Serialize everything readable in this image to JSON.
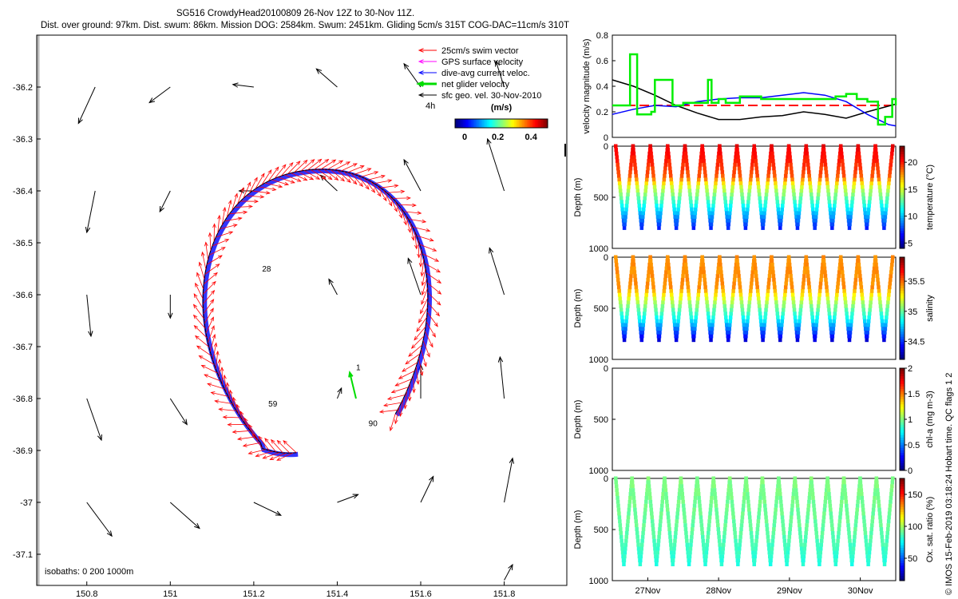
{
  "header": {
    "line1": "SG516 CrowdyHead20100809 26-Nov 12Z to 30-Nov 11Z.",
    "line2": "Dist. over ground: 97km. Dist. swum: 86km. Mission DOG: 2584km. Swum: 2451km. Gliding 5cm/s 315T COG-DAC=11cm/s 310T"
  },
  "credit": "© IMOS 15-Feb-2019 03:18:24 Hobart time. QC flags 1  2",
  "chart_data": [
    {
      "type": "scatter",
      "name": "map",
      "xlim": [
        150.68,
        151.95
      ],
      "ylim": [
        -37.16,
        -36.1
      ],
      "xticks": [
        "150.8",
        "151",
        "151.2",
        "151.4",
        "151.6",
        "151.8"
      ],
      "xtick_values": [
        150.8,
        151.0,
        151.2,
        151.4,
        151.6,
        151.8
      ],
      "yticks": [
        "-36.2",
        "-36.3",
        "-36.4",
        "-36.5",
        "-36.6",
        "-36.7",
        "-36.8",
        "-36.9",
        "-37",
        "-37.1"
      ],
      "ytick_values": [
        -36.2,
        -36.3,
        -36.4,
        -36.5,
        -36.6,
        -36.7,
        -36.8,
        -36.9,
        -37.0,
        -37.1
      ],
      "legend": {
        "placement": "top-right",
        "entries": [
          {
            "label": "25cm/s swim vector",
            "color": "#ff0000"
          },
          {
            "label": "GPS surface velocity",
            "color": "#ff00ff"
          },
          {
            "label": "dive-avg current veloc.",
            "color": "#0000ff"
          },
          {
            "label": "net glider velocity",
            "color": "#00dd00"
          },
          {
            "label": "sfc geo. vel. 30-Nov-2010",
            "color": "#000000"
          }
        ]
      },
      "colorbar": {
        "label": "(m/s)",
        "scale_tag": "4h",
        "ticks": [
          "0",
          "0.2",
          "0.4"
        ],
        "range": [
          0,
          0.5
        ]
      },
      "isobath_note": "isobaths: 0   200  1000m",
      "track_labels": [
        {
          "text": "1",
          "lon": 151.445,
          "lat": -36.745
        },
        {
          "text": "28",
          "lon": 151.22,
          "lat": -36.555
        },
        {
          "text": "59",
          "lon": 151.235,
          "lat": -36.815
        },
        {
          "text": "90",
          "lon": 151.475,
          "lat": -36.853
        }
      ],
      "track_center": {
        "lon": 151.35,
        "lat": -36.64
      },
      "geo_vectors": [
        {
          "lon": 150.82,
          "lat": -36.2,
          "dlon": -0.04,
          "dlat": -0.07
        },
        {
          "lon": 151.0,
          "lat": -36.2,
          "dlon": -0.05,
          "dlat": -0.03
        },
        {
          "lon": 151.2,
          "lat": -36.2,
          "dlon": -0.05,
          "dlat": 0.005
        },
        {
          "lon": 151.4,
          "lat": -36.2,
          "dlon": -0.05,
          "dlat": 0.035
        },
        {
          "lon": 151.6,
          "lat": -36.2,
          "dlon": -0.04,
          "dlat": 0.045
        },
        {
          "lon": 151.8,
          "lat": -36.2,
          "dlon": -0.02,
          "dlat": 0.05
        },
        {
          "lon": 150.82,
          "lat": -36.4,
          "dlon": -0.02,
          "dlat": -0.08
        },
        {
          "lon": 151.0,
          "lat": -36.4,
          "dlon": -0.025,
          "dlat": -0.04
        },
        {
          "lon": 151.2,
          "lat": -36.4,
          "dlon": -0.035,
          "dlat": 0.0
        },
        {
          "lon": 151.4,
          "lat": -36.4,
          "dlon": -0.04,
          "dlat": 0.03
        },
        {
          "lon": 151.6,
          "lat": -36.4,
          "dlon": -0.04,
          "dlat": 0.06
        },
        {
          "lon": 151.8,
          "lat": -36.4,
          "dlon": -0.04,
          "dlat": 0.1
        },
        {
          "lon": 150.8,
          "lat": -36.6,
          "dlon": 0.01,
          "dlat": -0.08
        },
        {
          "lon": 151.0,
          "lat": -36.6,
          "dlon": 0.0,
          "dlat": -0.045
        },
        {
          "lon": 151.4,
          "lat": -36.6,
          "dlon": -0.02,
          "dlat": 0.03
        },
        {
          "lon": 151.6,
          "lat": -36.6,
          "dlon": -0.03,
          "dlat": 0.07
        },
        {
          "lon": 151.8,
          "lat": -36.6,
          "dlon": -0.035,
          "dlat": 0.09
        },
        {
          "lon": 150.8,
          "lat": -36.8,
          "dlon": 0.035,
          "dlat": -0.08
        },
        {
          "lon": 151.0,
          "lat": -36.8,
          "dlon": 0.04,
          "dlat": -0.05
        },
        {
          "lon": 151.4,
          "lat": -36.8,
          "dlon": 0.01,
          "dlat": 0.02
        },
        {
          "lon": 151.6,
          "lat": -36.8,
          "dlon": 0.0,
          "dlat": 0.065
        },
        {
          "lon": 151.8,
          "lat": -36.8,
          "dlon": -0.01,
          "dlat": 0.08
        },
        {
          "lon": 150.8,
          "lat": -37.0,
          "dlon": 0.06,
          "dlat": -0.065
        },
        {
          "lon": 151.0,
          "lat": -37.0,
          "dlon": 0.07,
          "dlat": -0.05
        },
        {
          "lon": 151.2,
          "lat": -37.0,
          "dlon": 0.065,
          "dlat": -0.025
        },
        {
          "lon": 151.4,
          "lat": -37.0,
          "dlon": 0.05,
          "dlat": 0.015
        },
        {
          "lon": 151.6,
          "lat": -37.0,
          "dlon": 0.03,
          "dlat": 0.05
        },
        {
          "lon": 151.8,
          "lat": -37.0,
          "dlon": 0.02,
          "dlat": 0.085
        },
        {
          "lon": 151.8,
          "lat": -37.15,
          "dlon": 0.02,
          "dlat": 0.03
        }
      ]
    },
    {
      "type": "line",
      "name": "velocity",
      "ylabel": "velocity magnitude (m/s)",
      "ylim": [
        0,
        0.8
      ],
      "yticks": [
        "0",
        "0.2",
        "0.4",
        "0.6",
        "0.8"
      ],
      "ytick_values": [
        0,
        0.2,
        0.4,
        0.6,
        0.8
      ],
      "xlim": [
        0,
        4
      ],
      "series": [
        {
          "color": "#ff0000",
          "dashed": true,
          "x": [
            0,
            4
          ],
          "y": [
            0.25,
            0.25
          ]
        },
        {
          "color": "#000000",
          "x": [
            0,
            0.3,
            0.6,
            0.9,
            1.2,
            1.5,
            1.8,
            2.1,
            2.4,
            2.7,
            3.0,
            3.3,
            3.6,
            4.0
          ],
          "y": [
            0.45,
            0.4,
            0.33,
            0.25,
            0.19,
            0.14,
            0.14,
            0.16,
            0.17,
            0.2,
            0.18,
            0.15,
            0.2,
            0.26
          ]
        },
        {
          "color": "#0000ff",
          "x": [
            0,
            0.3,
            0.6,
            0.9,
            1.2,
            1.5,
            1.8,
            2.1,
            2.4,
            2.7,
            3.0,
            3.3,
            3.6,
            3.9,
            4.0
          ],
          "y": [
            0.18,
            0.22,
            0.25,
            0.24,
            0.28,
            0.3,
            0.31,
            0.31,
            0.33,
            0.35,
            0.33,
            0.28,
            0.18,
            0.1,
            0.09
          ]
        },
        {
          "color": "#00ee00",
          "step": true,
          "x": [
            0,
            0.2,
            0.25,
            0.35,
            0.55,
            0.6,
            0.85,
            1.0,
            1.35,
            1.4,
            1.5,
            1.6,
            1.8,
            2.1,
            2.5,
            2.9,
            3.15,
            3.3,
            3.45,
            3.6,
            3.75,
            3.85,
            3.95,
            4.0
          ],
          "y": [
            0.25,
            0.25,
            0.65,
            0.18,
            0.2,
            0.45,
            0.25,
            0.27,
            0.45,
            0.27,
            0.3,
            0.27,
            0.32,
            0.3,
            0.3,
            0.3,
            0.32,
            0.34,
            0.3,
            0.28,
            0.1,
            0.16,
            0.3,
            0.25
          ]
        }
      ]
    },
    {
      "type": "scatter",
      "name": "temperature",
      "ylabel": "Depth (m)",
      "cbar_label": "temperature (°C)",
      "yticks": [
        "0",
        "500",
        "1000"
      ],
      "ytick_values": [
        0,
        500,
        1000
      ],
      "ylim": [
        0,
        1000
      ],
      "cbar_range": [
        4,
        23
      ],
      "cbar_ticks": [
        "5",
        "10",
        "15",
        "20"
      ],
      "cbar_tick_values": [
        5,
        10,
        15,
        20
      ],
      "dives": 16,
      "max_depth": 800,
      "profile": [
        [
          0,
          21
        ],
        [
          300,
          19
        ],
        [
          400,
          15
        ],
        [
          550,
          12
        ],
        [
          650,
          10
        ],
        [
          800,
          7
        ]
      ]
    },
    {
      "type": "scatter",
      "name": "salinity",
      "ylabel": "Depth (m)",
      "cbar_label": "salinity",
      "yticks": [
        "0",
        "500",
        "1000"
      ],
      "ytick_values": [
        0,
        500,
        1000
      ],
      "ylim": [
        0,
        1000
      ],
      "cbar_range": [
        34.2,
        35.9
      ],
      "cbar_ticks": [
        "34.5",
        "35",
        "35.5"
      ],
      "cbar_tick_values": [
        34.5,
        35.0,
        35.5
      ],
      "dives": 16,
      "max_depth": 810,
      "profile": [
        [
          0,
          35.45
        ],
        [
          300,
          35.45
        ],
        [
          450,
          35.1
        ],
        [
          600,
          34.85
        ],
        [
          750,
          34.5
        ],
        [
          810,
          34.35
        ]
      ]
    },
    {
      "type": "scatter",
      "name": "chl-a",
      "ylabel": "Depth (m)",
      "cbar_label": "chl-a (mg m-3)",
      "yticks": [
        "0",
        "500",
        "1000"
      ],
      "ytick_values": [
        0,
        500,
        1000
      ],
      "ylim": [
        0,
        1000
      ],
      "cbar_range": [
        0,
        2
      ],
      "cbar_ticks": [
        "0",
        "0.5",
        "1",
        "1.5",
        "2"
      ],
      "cbar_tick_values": [
        0,
        0.5,
        1.0,
        1.5,
        2.0
      ],
      "dives": 0
    },
    {
      "type": "scatter",
      "name": "oxygen",
      "ylabel": "Depth (m)",
      "cbar_label": "Ox. sat. ratio (%)",
      "yticks": [
        "0",
        "500",
        "1000"
      ],
      "ytick_values": [
        0,
        500,
        1000
      ],
      "ylim": [
        0,
        1000
      ],
      "cbar_range": [
        15,
        175
      ],
      "cbar_ticks": [
        "50",
        "100",
        "150"
      ],
      "cbar_tick_values": [
        50,
        100,
        150
      ],
      "dives": 17,
      "max_depth": 840,
      "profile": [
        [
          0,
          95
        ],
        [
          500,
          90
        ],
        [
          840,
          80
        ]
      ],
      "xticks": [
        "27Nov",
        "28Nov",
        "29Nov",
        "30Nov"
      ],
      "xtick_values": [
        0.5,
        1.5,
        2.5,
        3.5
      ]
    }
  ]
}
